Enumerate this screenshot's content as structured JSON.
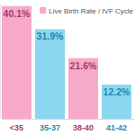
{
  "chart_data": {
    "type": "bar",
    "title": "Live Birth Rate / IVF Cycle",
    "categories": [
      "<35",
      "35-37",
      "38-40",
      "41-42"
    ],
    "values": [
      40.1,
      31.9,
      21.6,
      12.2
    ],
    "value_labels": [
      "40.1%",
      "31.9%",
      "21.6%",
      "12.2%"
    ],
    "colors": [
      "#f6a9c9",
      "#8dd6ef",
      "#f6a9c9",
      "#8dd6ef"
    ],
    "ylim": [
      0,
      41
    ],
    "data_labels": true,
    "tick_labels": "x"
  }
}
